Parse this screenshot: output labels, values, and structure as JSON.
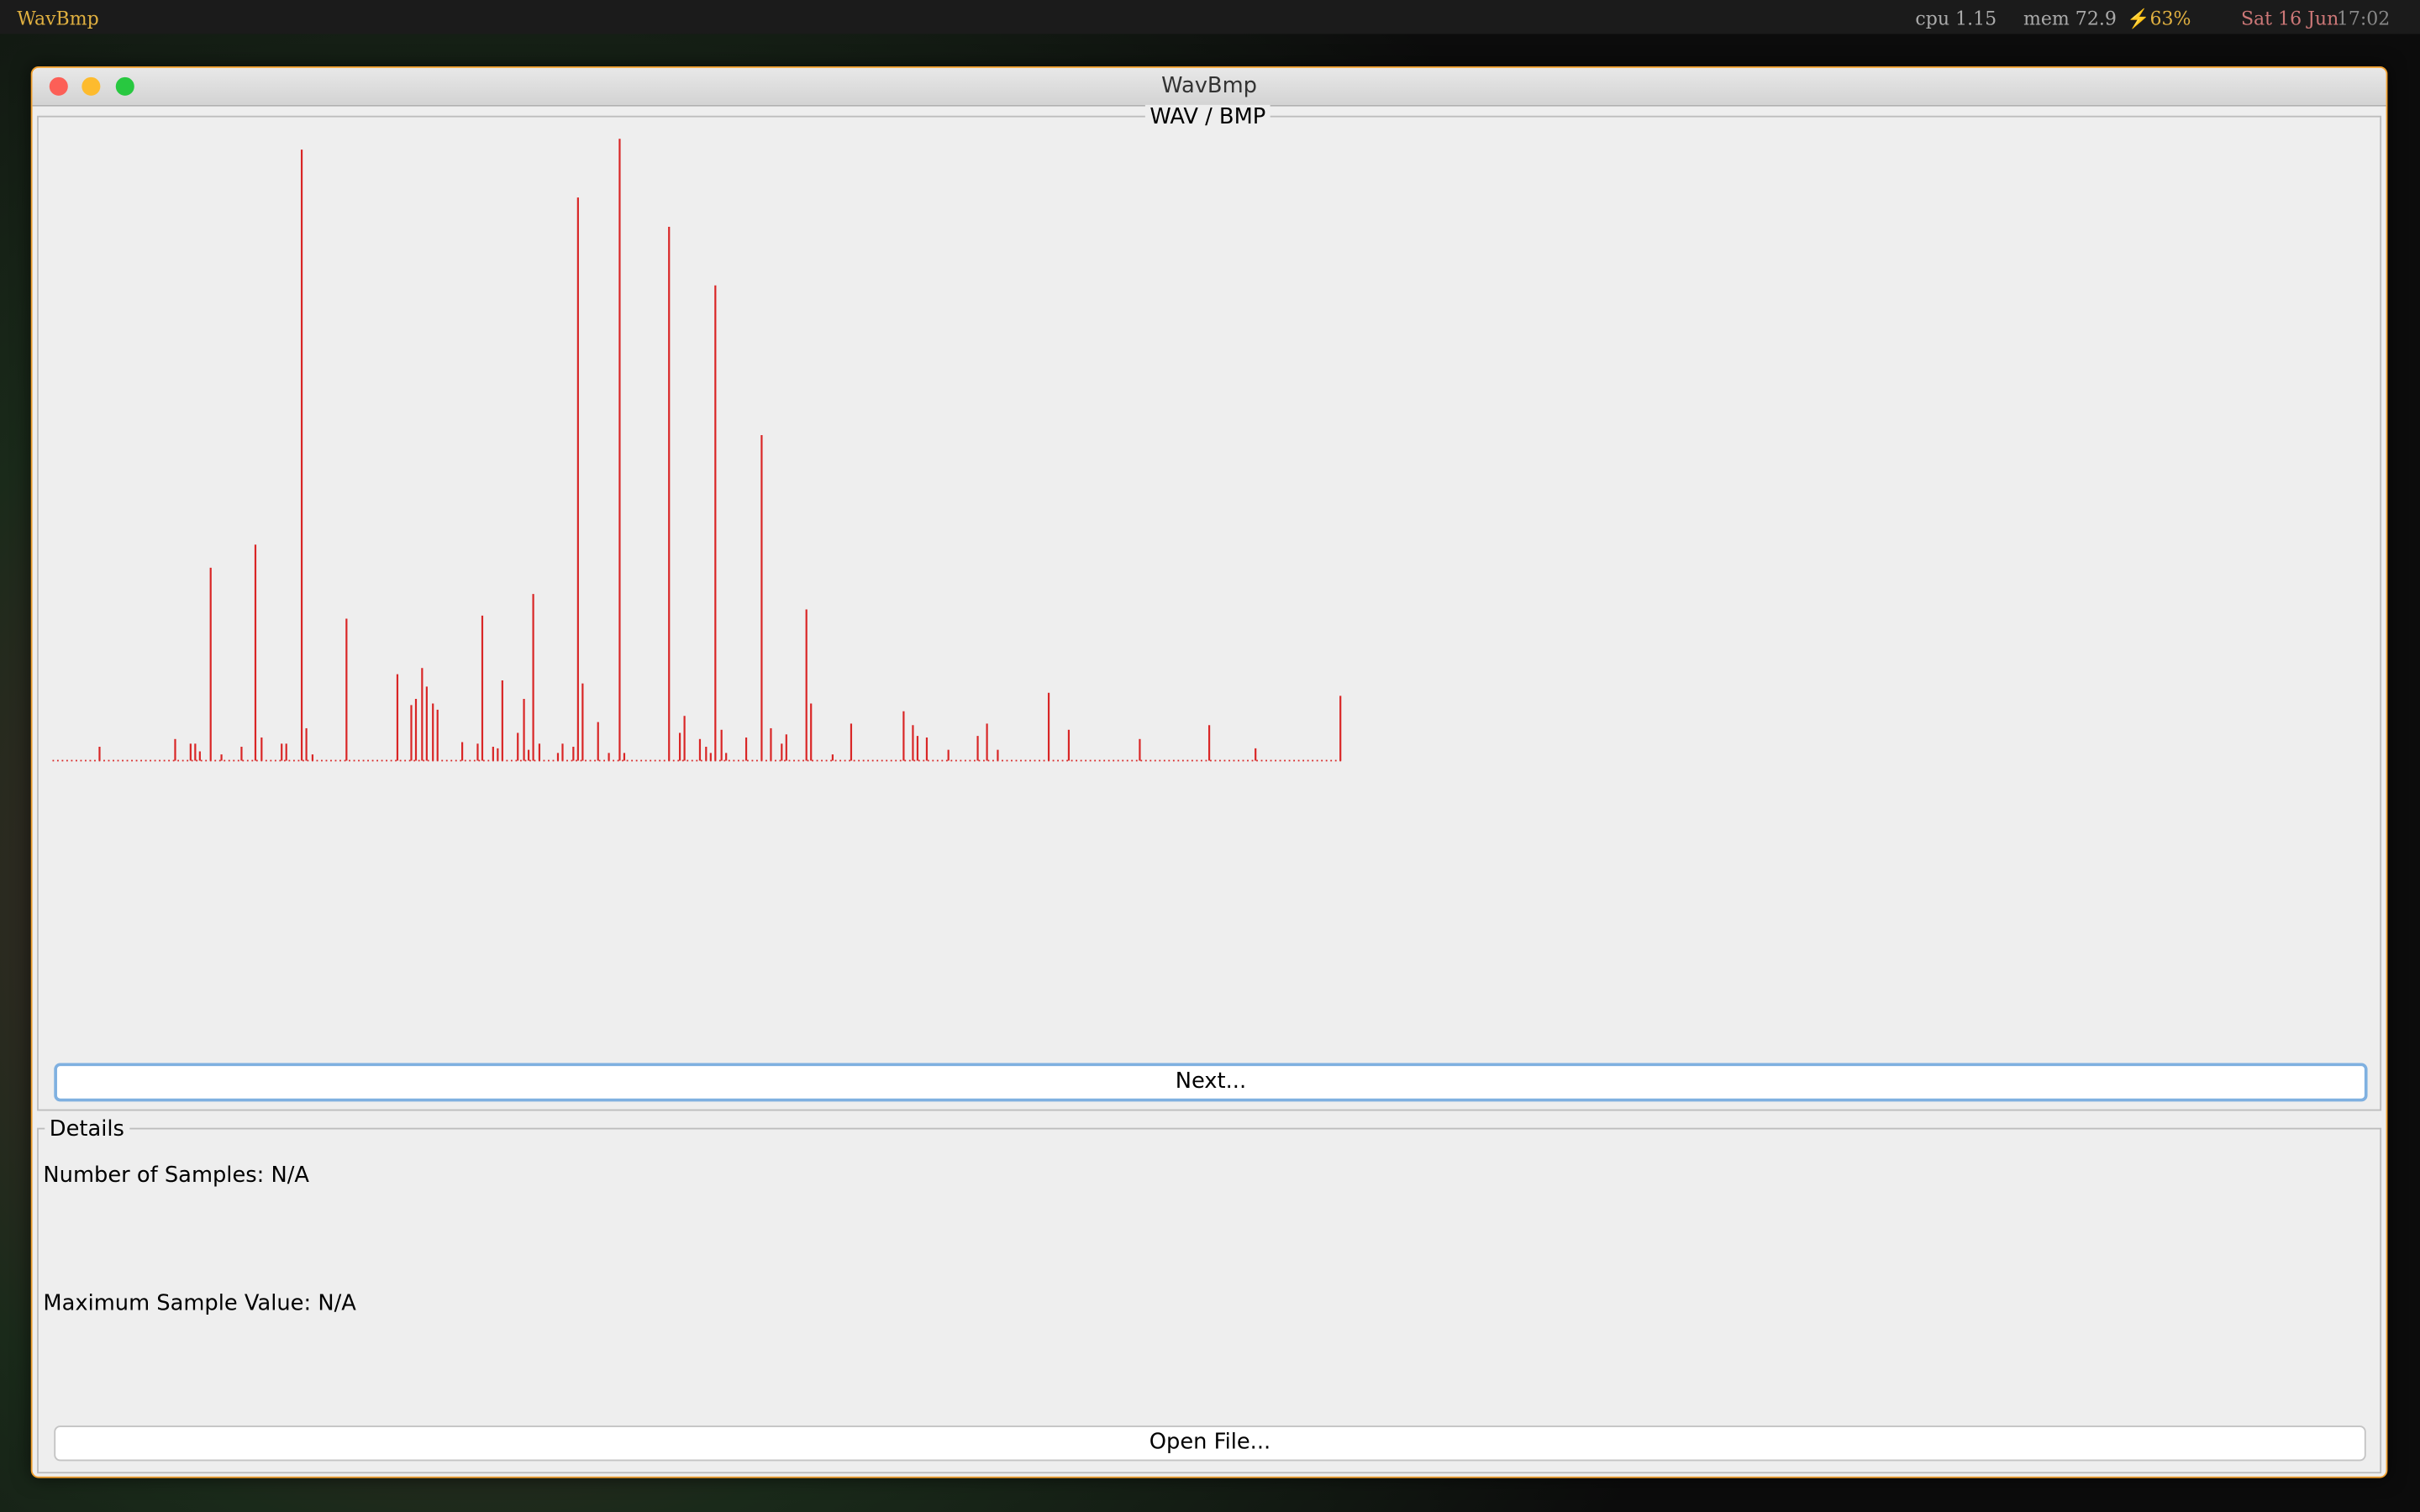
{
  "menubar": {
    "app": "WavBmp",
    "cpu": "cpu 1.15",
    "mem": "mem 72.9",
    "battery": "⚡63%",
    "date": "Sat 16 Jun",
    "time": "17:02"
  },
  "window": {
    "title": "WavBmp"
  },
  "panel": {
    "title": "WAV / BMP"
  },
  "chart_data": {
    "type": "stem",
    "color": "#d92626",
    "xlim": [
      0,
      835
    ],
    "ylim": [
      0,
      403
    ],
    "x": [
      30,
      79,
      89,
      92,
      95,
      102,
      109,
      122,
      131,
      135,
      148,
      151,
      161,
      164,
      168,
      190,
      223,
      232,
      235,
      239,
      242,
      246,
      249,
      265,
      275,
      278,
      285,
      288,
      291,
      301,
      305,
      308,
      311,
      315,
      327,
      330,
      337,
      340,
      343,
      353,
      360,
      367,
      370,
      399,
      406,
      409,
      419,
      423,
      426,
      429,
      433,
      436,
      449,
      459,
      465,
      472,
      475,
      488,
      491,
      505,
      517,
      551,
      557,
      560,
      566,
      580,
      599,
      605,
      612,
      645,
      658,
      704,
      749,
      779,
      834
    ],
    "values": [
      9,
      14,
      11,
      11,
      6,
      125,
      4,
      9,
      140,
      15,
      11,
      11,
      396,
      21,
      4,
      92,
      56,
      36,
      40,
      60,
      48,
      37,
      33,
      12,
      11,
      94,
      9,
      8,
      52,
      18,
      40,
      7,
      108,
      11,
      5,
      11,
      9,
      365,
      50,
      25,
      5,
      403,
      5,
      346,
      18,
      29,
      14,
      9,
      5,
      308,
      20,
      5,
      15,
      211,
      21,
      11,
      17,
      98,
      37,
      4,
      24,
      32,
      23,
      16,
      15,
      7,
      16,
      24,
      7,
      44,
      20,
      14,
      23,
      8,
      42
    ]
  },
  "buttons": {
    "next": "Next...",
    "open": "Open File..."
  },
  "details": {
    "title": "Details",
    "samples": "Number of Samples: N/A",
    "max": "Maximum Sample Value: N/A"
  }
}
